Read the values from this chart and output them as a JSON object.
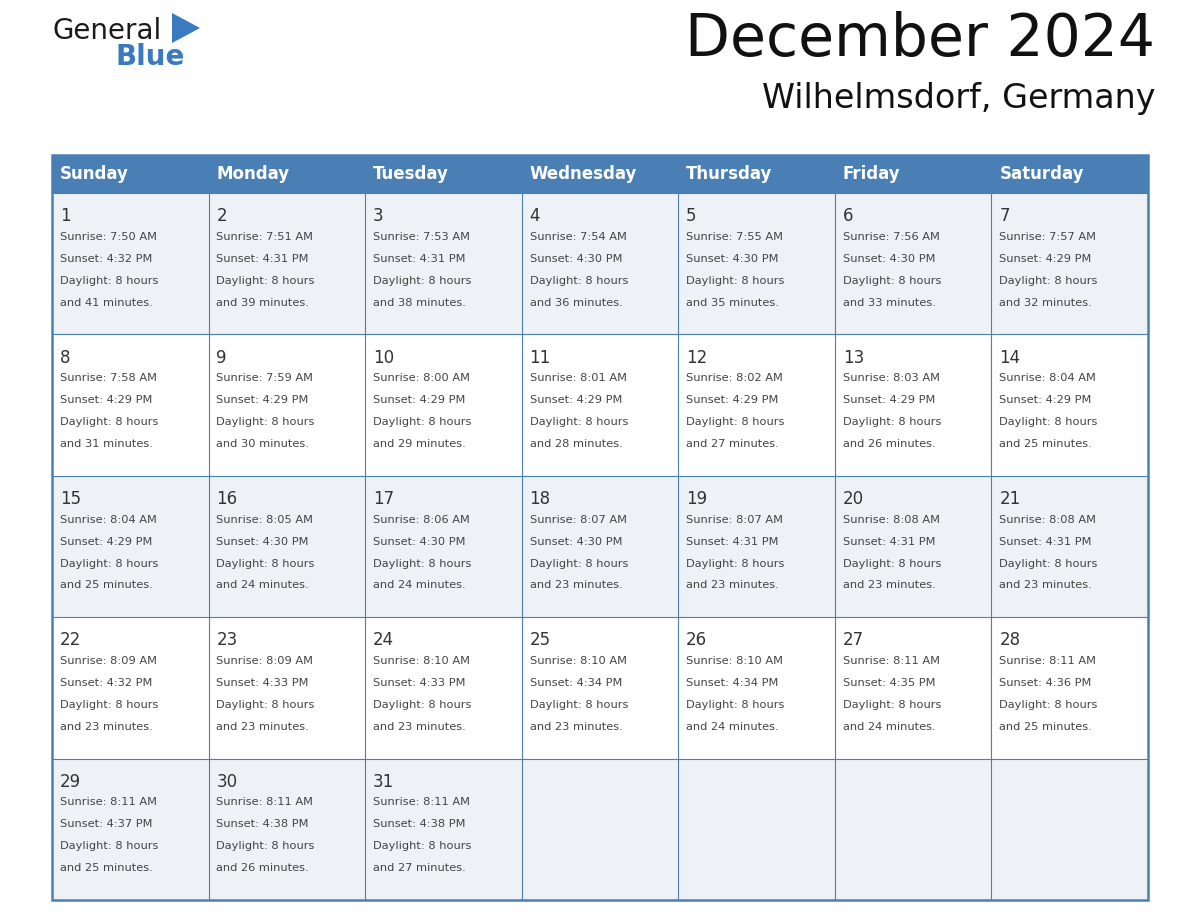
{
  "title": "December 2024",
  "subtitle": "Wilhelmsdorf, Germany",
  "header_color": "#4a7fb5",
  "header_text_color": "#ffffff",
  "cell_bg_even": "#eef2f7",
  "cell_bg_odd": "#ffffff",
  "border_color": "#4a7fb5",
  "inner_line_color": "#4a7fb5",
  "day_names": [
    "Sunday",
    "Monday",
    "Tuesday",
    "Wednesday",
    "Thursday",
    "Friday",
    "Saturday"
  ],
  "title_color": "#111111",
  "subtitle_color": "#111111",
  "logo_general_color": "#1a1a1a",
  "logo_blue_color": "#3a7abf",
  "date_color": "#333333",
  "text_color": "#444444",
  "days": [
    {
      "date": 1,
      "col": 0,
      "row": 0,
      "sunrise": "7:50 AM",
      "sunset": "4:32 PM",
      "daylight": "8 hours and 41 minutes"
    },
    {
      "date": 2,
      "col": 1,
      "row": 0,
      "sunrise": "7:51 AM",
      "sunset": "4:31 PM",
      "daylight": "8 hours and 39 minutes"
    },
    {
      "date": 3,
      "col": 2,
      "row": 0,
      "sunrise": "7:53 AM",
      "sunset": "4:31 PM",
      "daylight": "8 hours and 38 minutes"
    },
    {
      "date": 4,
      "col": 3,
      "row": 0,
      "sunrise": "7:54 AM",
      "sunset": "4:30 PM",
      "daylight": "8 hours and 36 minutes"
    },
    {
      "date": 5,
      "col": 4,
      "row": 0,
      "sunrise": "7:55 AM",
      "sunset": "4:30 PM",
      "daylight": "8 hours and 35 minutes"
    },
    {
      "date": 6,
      "col": 5,
      "row": 0,
      "sunrise": "7:56 AM",
      "sunset": "4:30 PM",
      "daylight": "8 hours and 33 minutes"
    },
    {
      "date": 7,
      "col": 6,
      "row": 0,
      "sunrise": "7:57 AM",
      "sunset": "4:29 PM",
      "daylight": "8 hours and 32 minutes"
    },
    {
      "date": 8,
      "col": 0,
      "row": 1,
      "sunrise": "7:58 AM",
      "sunset": "4:29 PM",
      "daylight": "8 hours and 31 minutes"
    },
    {
      "date": 9,
      "col": 1,
      "row": 1,
      "sunrise": "7:59 AM",
      "sunset": "4:29 PM",
      "daylight": "8 hours and 30 minutes"
    },
    {
      "date": 10,
      "col": 2,
      "row": 1,
      "sunrise": "8:00 AM",
      "sunset": "4:29 PM",
      "daylight": "8 hours and 29 minutes"
    },
    {
      "date": 11,
      "col": 3,
      "row": 1,
      "sunrise": "8:01 AM",
      "sunset": "4:29 PM",
      "daylight": "8 hours and 28 minutes"
    },
    {
      "date": 12,
      "col": 4,
      "row": 1,
      "sunrise": "8:02 AM",
      "sunset": "4:29 PM",
      "daylight": "8 hours and 27 minutes"
    },
    {
      "date": 13,
      "col": 5,
      "row": 1,
      "sunrise": "8:03 AM",
      "sunset": "4:29 PM",
      "daylight": "8 hours and 26 minutes"
    },
    {
      "date": 14,
      "col": 6,
      "row": 1,
      "sunrise": "8:04 AM",
      "sunset": "4:29 PM",
      "daylight": "8 hours and 25 minutes"
    },
    {
      "date": 15,
      "col": 0,
      "row": 2,
      "sunrise": "8:04 AM",
      "sunset": "4:29 PM",
      "daylight": "8 hours and 25 minutes"
    },
    {
      "date": 16,
      "col": 1,
      "row": 2,
      "sunrise": "8:05 AM",
      "sunset": "4:30 PM",
      "daylight": "8 hours and 24 minutes"
    },
    {
      "date": 17,
      "col": 2,
      "row": 2,
      "sunrise": "8:06 AM",
      "sunset": "4:30 PM",
      "daylight": "8 hours and 24 minutes"
    },
    {
      "date": 18,
      "col": 3,
      "row": 2,
      "sunrise": "8:07 AM",
      "sunset": "4:30 PM",
      "daylight": "8 hours and 23 minutes"
    },
    {
      "date": 19,
      "col": 4,
      "row": 2,
      "sunrise": "8:07 AM",
      "sunset": "4:31 PM",
      "daylight": "8 hours and 23 minutes"
    },
    {
      "date": 20,
      "col": 5,
      "row": 2,
      "sunrise": "8:08 AM",
      "sunset": "4:31 PM",
      "daylight": "8 hours and 23 minutes"
    },
    {
      "date": 21,
      "col": 6,
      "row": 2,
      "sunrise": "8:08 AM",
      "sunset": "4:31 PM",
      "daylight": "8 hours and 23 minutes"
    },
    {
      "date": 22,
      "col": 0,
      "row": 3,
      "sunrise": "8:09 AM",
      "sunset": "4:32 PM",
      "daylight": "8 hours and 23 minutes"
    },
    {
      "date": 23,
      "col": 1,
      "row": 3,
      "sunrise": "8:09 AM",
      "sunset": "4:33 PM",
      "daylight": "8 hours and 23 minutes"
    },
    {
      "date": 24,
      "col": 2,
      "row": 3,
      "sunrise": "8:10 AM",
      "sunset": "4:33 PM",
      "daylight": "8 hours and 23 minutes"
    },
    {
      "date": 25,
      "col": 3,
      "row": 3,
      "sunrise": "8:10 AM",
      "sunset": "4:34 PM",
      "daylight": "8 hours and 23 minutes"
    },
    {
      "date": 26,
      "col": 4,
      "row": 3,
      "sunrise": "8:10 AM",
      "sunset": "4:34 PM",
      "daylight": "8 hours and 24 minutes"
    },
    {
      "date": 27,
      "col": 5,
      "row": 3,
      "sunrise": "8:11 AM",
      "sunset": "4:35 PM",
      "daylight": "8 hours and 24 minutes"
    },
    {
      "date": 28,
      "col": 6,
      "row": 3,
      "sunrise": "8:11 AM",
      "sunset": "4:36 PM",
      "daylight": "8 hours and 25 minutes"
    },
    {
      "date": 29,
      "col": 0,
      "row": 4,
      "sunrise": "8:11 AM",
      "sunset": "4:37 PM",
      "daylight": "8 hours and 25 minutes"
    },
    {
      "date": 30,
      "col": 1,
      "row": 4,
      "sunrise": "8:11 AM",
      "sunset": "4:38 PM",
      "daylight": "8 hours and 26 minutes"
    },
    {
      "date": 31,
      "col": 2,
      "row": 4,
      "sunrise": "8:11 AM",
      "sunset": "4:38 PM",
      "daylight": "8 hours and 27 minutes"
    }
  ]
}
